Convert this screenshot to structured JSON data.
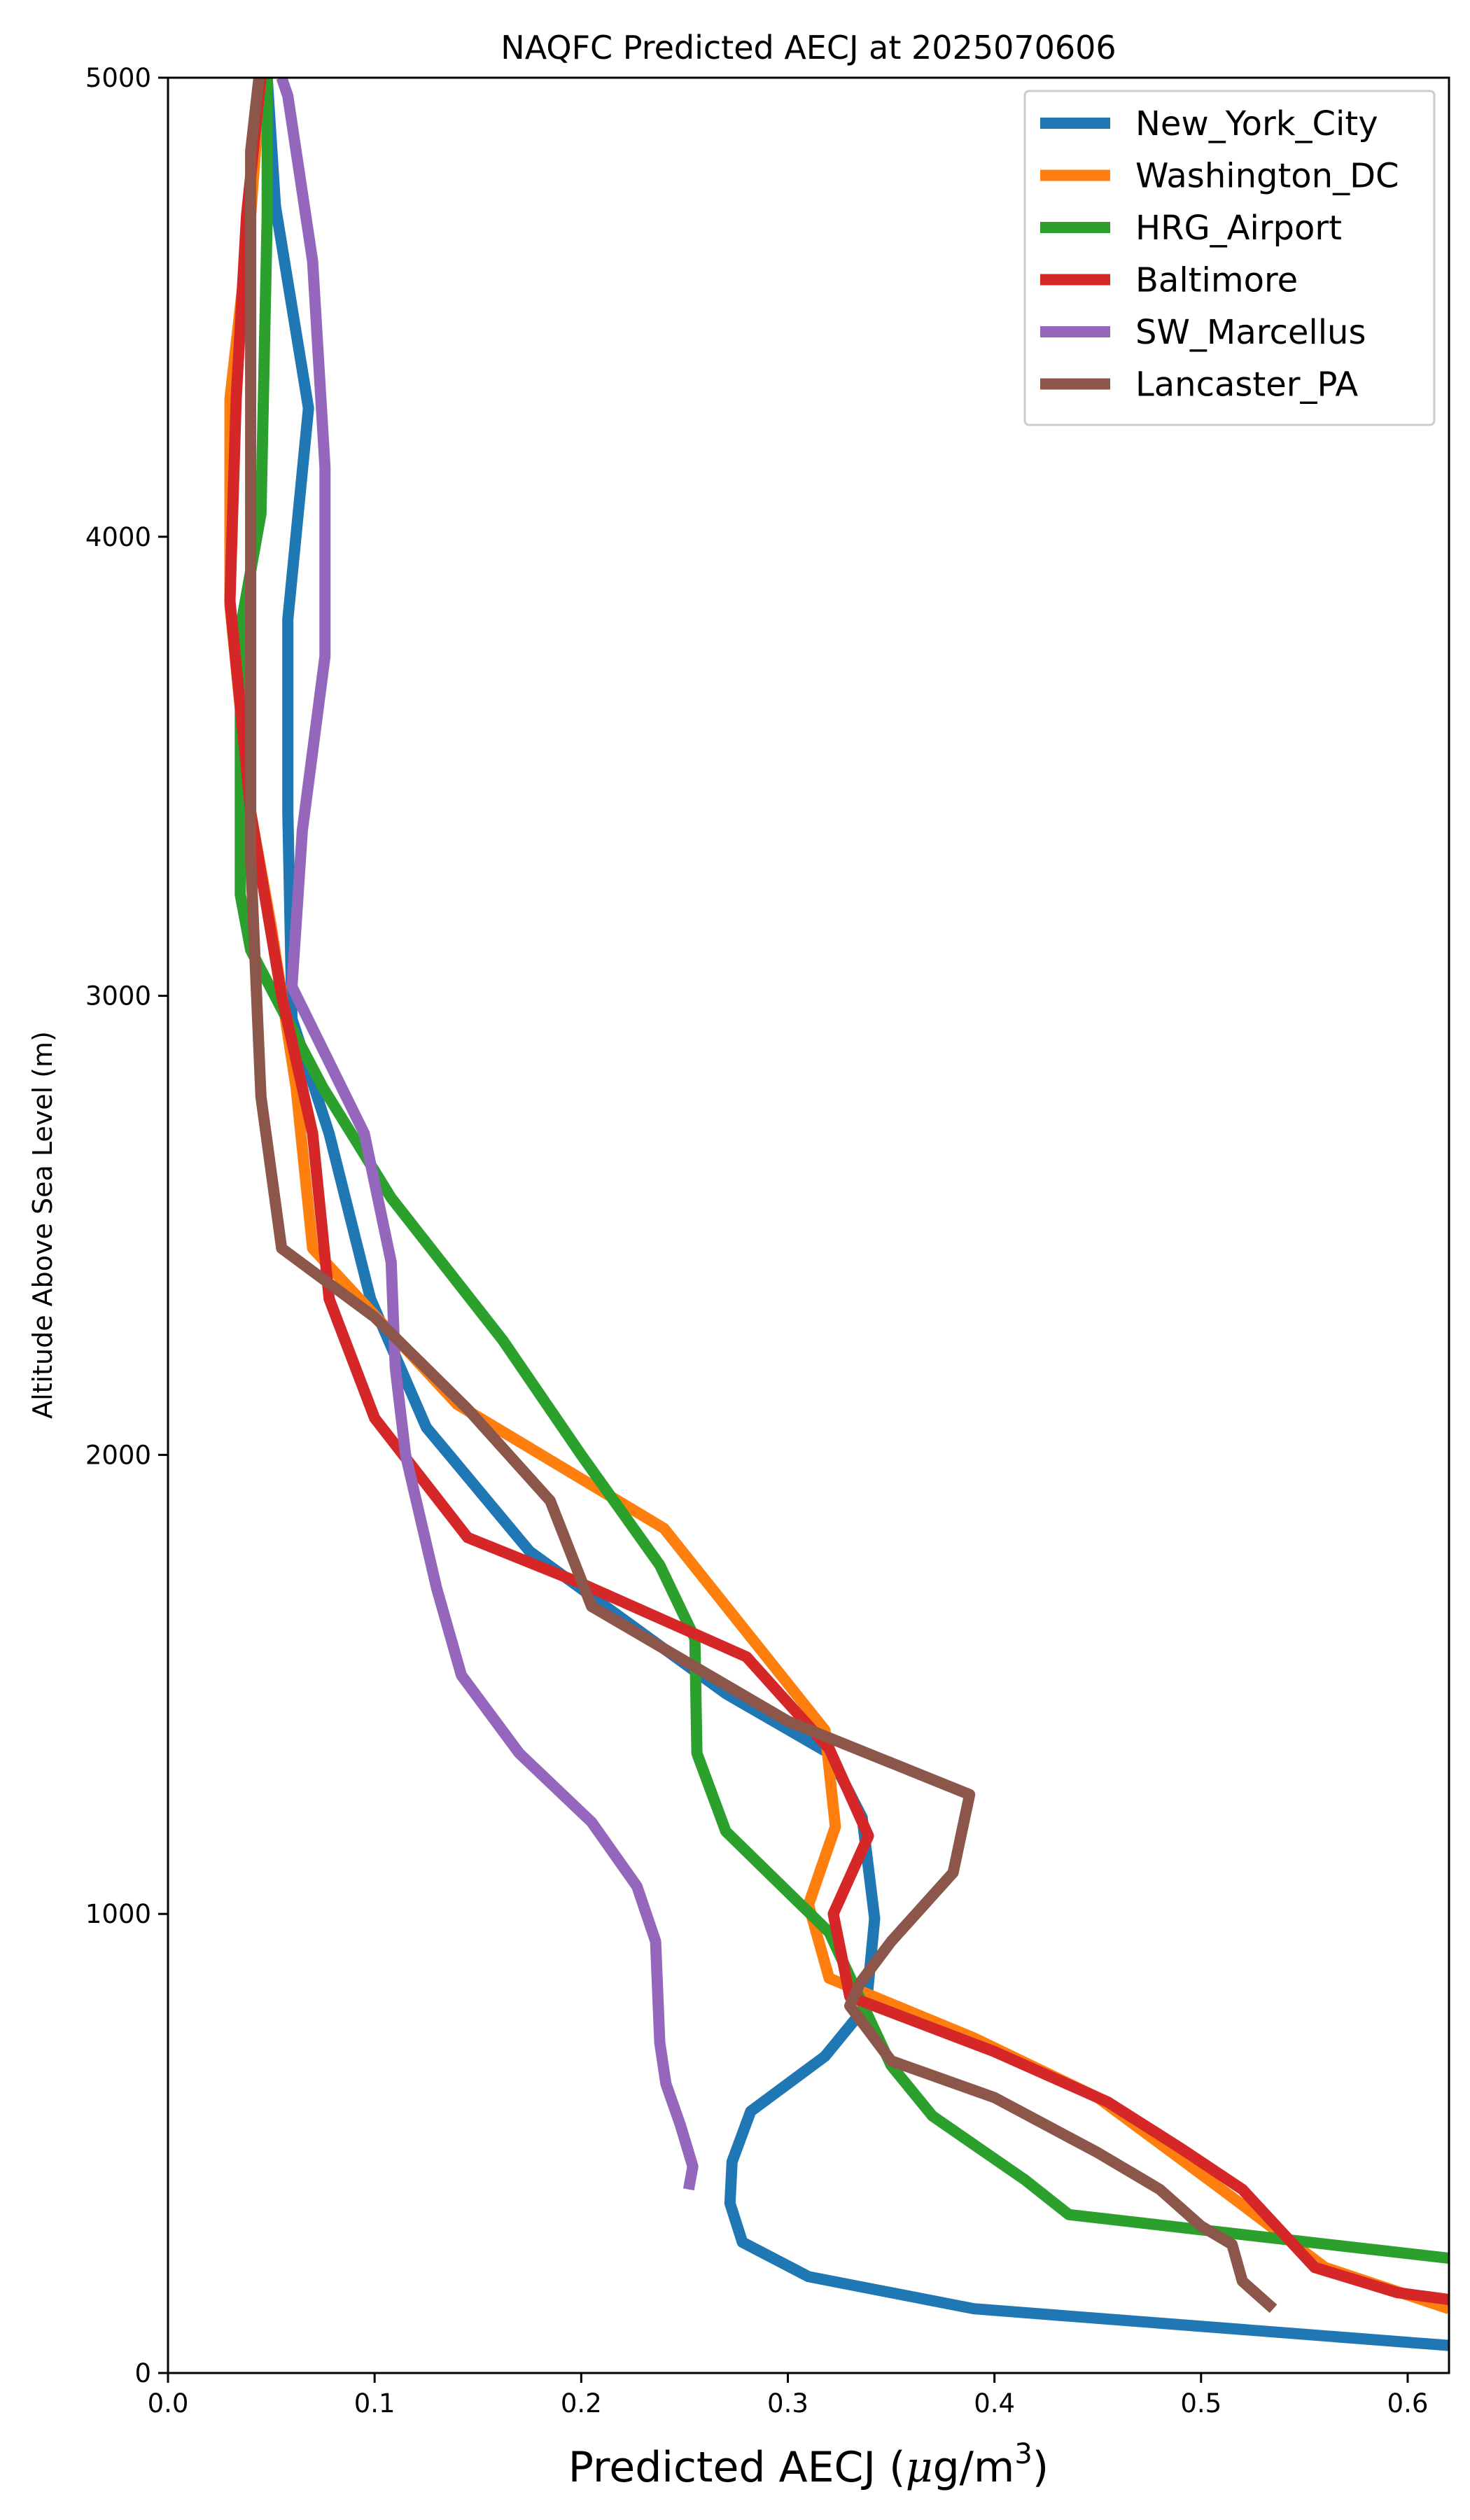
{
  "chart_data": {
    "type": "line",
    "title": "NAQFC Predicted AECJ at 2025070606",
    "xlabel_parts": {
      "text": "Predicted AECJ (",
      "mu": "μ",
      "unit": "g/m",
      "sup": "3",
      "close": ")"
    },
    "ylabel": "Altitude Above Sea Level (m)",
    "xlim": [
      0.0,
      0.62
    ],
    "ylim": [
      0,
      5000
    ],
    "xticks": [
      "0.0",
      "0.1",
      "0.2",
      "0.3",
      "0.4",
      "0.5",
      "0.6"
    ],
    "xtick_values": [
      0.0,
      0.1,
      0.2,
      0.3,
      0.4,
      0.5,
      0.6
    ],
    "yticks": [
      "0",
      "1000",
      "2000",
      "3000",
      "4000",
      "5000"
    ],
    "ytick_values": [
      0,
      1000,
      2000,
      3000,
      4000,
      5000
    ],
    "grid": false,
    "legend_position": "top-right",
    "series": [
      {
        "name": "New_York_City",
        "color": "#1f77b4",
        "points": [
          [
            0.62,
            60
          ],
          [
            0.39,
            140
          ],
          [
            0.31,
            210
          ],
          [
            0.278,
            285
          ],
          [
            0.272,
            370
          ],
          [
            0.273,
            460
          ],
          [
            0.282,
            570
          ],
          [
            0.318,
            690
          ],
          [
            0.338,
            800
          ],
          [
            0.342,
            990
          ],
          [
            0.336,
            1210
          ],
          [
            0.32,
            1350
          ],
          [
            0.27,
            1480
          ],
          [
            0.175,
            1790
          ],
          [
            0.125,
            2060
          ],
          [
            0.098,
            2340
          ],
          [
            0.078,
            2700
          ],
          [
            0.06,
            2950
          ],
          [
            0.058,
            3400
          ],
          [
            0.058,
            3820
          ],
          [
            0.068,
            4280
          ],
          [
            0.052,
            4720
          ],
          [
            0.048,
            5000
          ]
        ]
      },
      {
        "name": "Washington_DC",
        "color": "#ff7f0e",
        "points": [
          [
            0.62,
            140
          ],
          [
            0.56,
            230
          ],
          [
            0.51,
            400
          ],
          [
            0.45,
            600
          ],
          [
            0.39,
            730
          ],
          [
            0.32,
            860
          ],
          [
            0.31,
            1020
          ],
          [
            0.323,
            1190
          ],
          [
            0.318,
            1400
          ],
          [
            0.24,
            1840
          ],
          [
            0.14,
            2110
          ],
          [
            0.07,
            2450
          ],
          [
            0.062,
            2800
          ],
          [
            0.05,
            3150
          ],
          [
            0.04,
            3400
          ],
          [
            0.03,
            3850
          ],
          [
            0.03,
            4300
          ],
          [
            0.04,
            4700
          ],
          [
            0.045,
            5000
          ]
        ]
      },
      {
        "name": "HRG_Airport",
        "color": "#2ca02c",
        "points": [
          [
            0.62,
            250
          ],
          [
            0.436,
            345
          ],
          [
            0.415,
            420
          ],
          [
            0.37,
            560
          ],
          [
            0.35,
            670
          ],
          [
            0.32,
            960
          ],
          [
            0.27,
            1180
          ],
          [
            0.256,
            1350
          ],
          [
            0.255,
            1600
          ],
          [
            0.238,
            1760
          ],
          [
            0.2,
            2000
          ],
          [
            0.162,
            2250
          ],
          [
            0.108,
            2560
          ],
          [
            0.075,
            2800
          ],
          [
            0.04,
            3100
          ],
          [
            0.035,
            3220
          ],
          [
            0.035,
            3800
          ],
          [
            0.045,
            4050
          ],
          [
            0.048,
            4700
          ],
          [
            0.048,
            5000
          ]
        ]
      },
      {
        "name": "Baltimore",
        "color": "#d62728",
        "points": [
          [
            0.62,
            160
          ],
          [
            0.595,
            175
          ],
          [
            0.555,
            230
          ],
          [
            0.52,
            400
          ],
          [
            0.49,
            490
          ],
          [
            0.455,
            590
          ],
          [
            0.4,
            700
          ],
          [
            0.33,
            820
          ],
          [
            0.322,
            1000
          ],
          [
            0.339,
            1170
          ],
          [
            0.32,
            1360
          ],
          [
            0.28,
            1560
          ],
          [
            0.2,
            1720
          ],
          [
            0.145,
            1820
          ],
          [
            0.1,
            2080
          ],
          [
            0.078,
            2340
          ],
          [
            0.07,
            2700
          ],
          [
            0.055,
            3000
          ],
          [
            0.04,
            3400
          ],
          [
            0.03,
            3860
          ],
          [
            0.033,
            4300
          ],
          [
            0.038,
            4700
          ],
          [
            0.045,
            5000
          ]
        ]
      },
      {
        "name": "SW_Marcellus",
        "color": "#9467bd",
        "points": [
          [
            0.252,
            400
          ],
          [
            0.254,
            450
          ],
          [
            0.248,
            540
          ],
          [
            0.241,
            630
          ],
          [
            0.238,
            720
          ],
          [
            0.236,
            940
          ],
          [
            0.227,
            1060
          ],
          [
            0.205,
            1200
          ],
          [
            0.17,
            1350
          ],
          [
            0.142,
            1520
          ],
          [
            0.13,
            1710
          ],
          [
            0.115,
            2000
          ],
          [
            0.11,
            2190
          ],
          [
            0.108,
            2420
          ],
          [
            0.095,
            2700
          ],
          [
            0.06,
            3020
          ],
          [
            0.065,
            3360
          ],
          [
            0.076,
            3740
          ],
          [
            0.076,
            4150
          ],
          [
            0.07,
            4600
          ],
          [
            0.058,
            4960
          ],
          [
            0.055,
            5000
          ]
        ]
      },
      {
        "name": "Lancaster_PA",
        "color": "#8c564b",
        "points": [
          [
            0.535,
            140
          ],
          [
            0.52,
            200
          ],
          [
            0.515,
            280
          ],
          [
            0.5,
            320
          ],
          [
            0.48,
            400
          ],
          [
            0.45,
            480
          ],
          [
            0.4,
            600
          ],
          [
            0.35,
            680
          ],
          [
            0.33,
            800
          ],
          [
            0.335,
            850
          ],
          [
            0.35,
            940
          ],
          [
            0.38,
            1090
          ],
          [
            0.388,
            1260
          ],
          [
            0.3,
            1420
          ],
          [
            0.205,
            1670
          ],
          [
            0.185,
            1900
          ],
          [
            0.145,
            2100
          ],
          [
            0.1,
            2300
          ],
          [
            0.055,
            2450
          ],
          [
            0.045,
            2780
          ],
          [
            0.04,
            3300
          ],
          [
            0.04,
            3800
          ],
          [
            0.04,
            4840
          ],
          [
            0.044,
            5000
          ]
        ]
      }
    ]
  }
}
